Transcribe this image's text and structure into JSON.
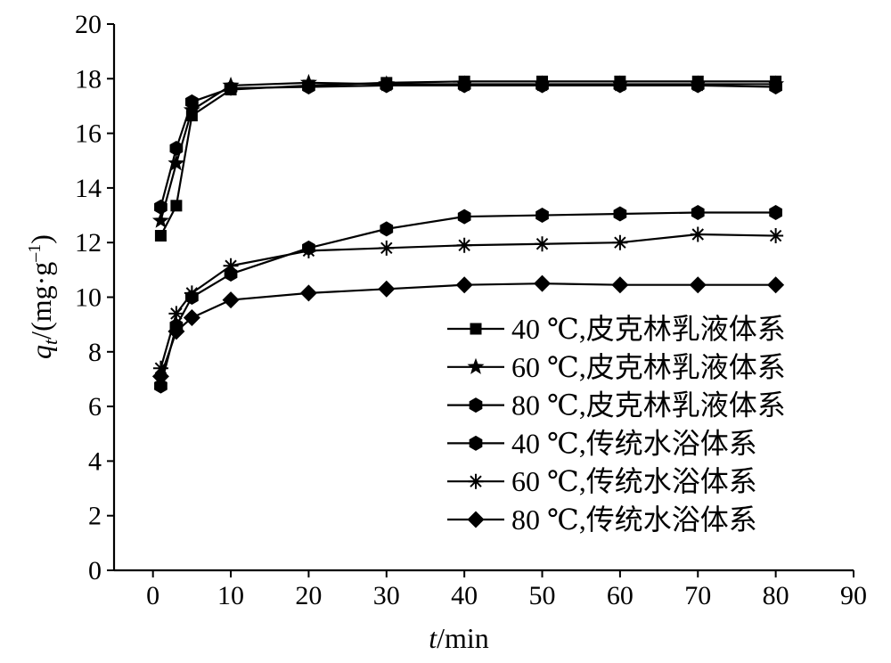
{
  "chart_data": {
    "type": "line",
    "xlabel": {
      "var": "t",
      "unit": "/min"
    },
    "ylabel": {
      "var": "q",
      "sub": "t",
      "unit": "/(mg·g",
      "sup": "–1",
      "close": ")"
    },
    "xlim": [
      -5,
      90
    ],
    "ylim": [
      0,
      20
    ],
    "x_ticks": [
      0,
      10,
      20,
      30,
      40,
      50,
      60,
      70,
      80,
      90
    ],
    "y_ticks": [
      0,
      2,
      4,
      6,
      8,
      10,
      12,
      14,
      16,
      18,
      20
    ],
    "grid": false,
    "legend": {
      "position": "lower-right"
    },
    "x": [
      1,
      3,
      5,
      10,
      20,
      30,
      40,
      50,
      60,
      70,
      80
    ],
    "series": [
      {
        "name": "40 ℃,皮克林乳液体系",
        "marker": "square",
        "color": "#000000",
        "values": [
          12.25,
          13.35,
          16.65,
          17.6,
          17.75,
          17.85,
          17.9,
          17.9,
          17.9,
          17.9,
          17.9
        ]
      },
      {
        "name": "60 ℃,皮克林乳液体系",
        "marker": "star",
        "color": "#000000",
        "values": [
          12.8,
          14.9,
          16.85,
          17.75,
          17.85,
          17.8,
          17.8,
          17.8,
          17.8,
          17.8,
          17.8
        ]
      },
      {
        "name": "80 ℃,皮克林乳液体系",
        "marker": "hexagon",
        "color": "#000000",
        "values": [
          13.3,
          15.45,
          17.15,
          17.65,
          17.7,
          17.75,
          17.75,
          17.75,
          17.75,
          17.75,
          17.7
        ]
      },
      {
        "name": "40 ℃,传统水浴体系",
        "marker": "hexagon",
        "color": "#000000",
        "values": [
          6.75,
          8.95,
          10.0,
          10.85,
          11.8,
          12.5,
          12.95,
          13.0,
          13.05,
          13.1,
          13.1
        ]
      },
      {
        "name": "60 ℃,传统水浴体系",
        "marker": "asterisk",
        "color": "#000000",
        "values": [
          7.4,
          9.4,
          10.15,
          11.15,
          11.7,
          11.8,
          11.9,
          11.95,
          12.0,
          12.3,
          12.25
        ]
      },
      {
        "name": "80 ℃,传统水浴体系",
        "marker": "diamond",
        "color": "#000000",
        "values": [
          7.1,
          8.75,
          9.25,
          9.9,
          10.15,
          10.3,
          10.45,
          10.5,
          10.45,
          10.45,
          10.45
        ]
      }
    ]
  }
}
